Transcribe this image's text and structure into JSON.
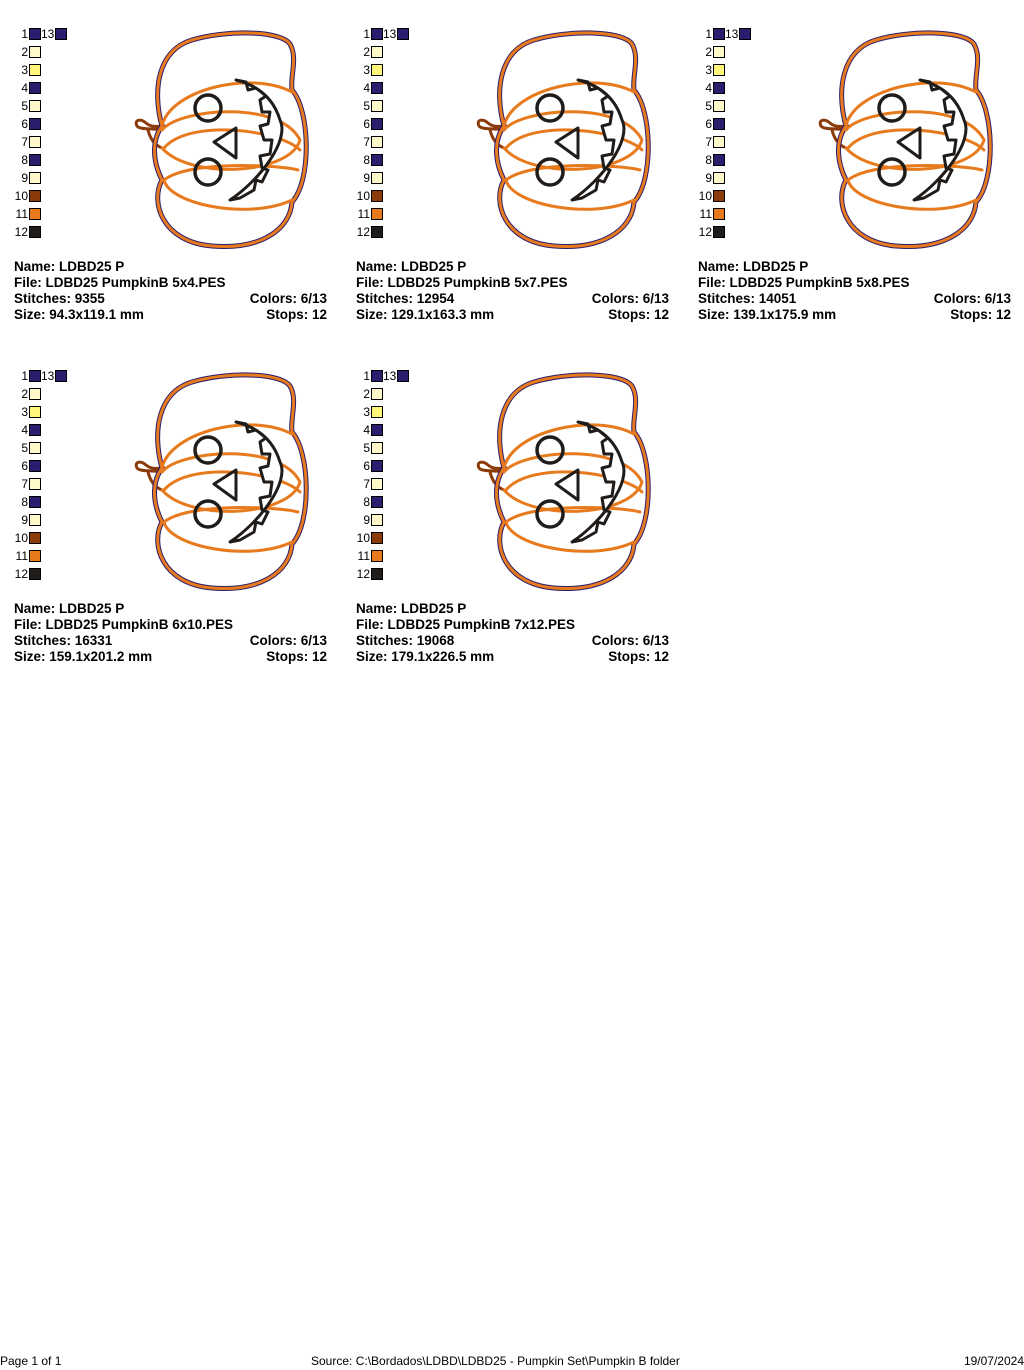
{
  "thread_colors": [
    {
      "num": "1",
      "color": "#2a1d6e"
    },
    {
      "num": "2",
      "color": "#fff8c8"
    },
    {
      "num": "3",
      "color": "#fff67a"
    },
    {
      "num": "4",
      "color": "#2a1d6e"
    },
    {
      "num": "5",
      "color": "#fff8c8"
    },
    {
      "num": "6",
      "color": "#2a1d6e"
    },
    {
      "num": "7",
      "color": "#fff8c8"
    },
    {
      "num": "8",
      "color": "#2a1d6e"
    },
    {
      "num": "9",
      "color": "#fff8c8"
    },
    {
      "num": "10",
      "color": "#8b3a0a"
    },
    {
      "num": "11",
      "color": "#e87a1e"
    },
    {
      "num": "12",
      "color": "#201c1a"
    }
  ],
  "extra_color": {
    "num": "13",
    "color": "#2a1d6e"
  },
  "designs": [
    {
      "name": "Name: LDBD25 P",
      "file": "File: LDBD25 PumpkinB 5x4.PES",
      "stitches": "Stitches: 9355",
      "colors": "Colors: 6/13",
      "size": "Size: 94.3x119.1 mm",
      "stops": "Stops: 12"
    },
    {
      "name": "Name: LDBD25 P",
      "file": "File: LDBD25 PumpkinB 5x7.PES",
      "stitches": "Stitches: 12954",
      "colors": "Colors: 6/13",
      "size": "Size: 129.1x163.3 mm",
      "stops": "Stops: 12"
    },
    {
      "name": "Name: LDBD25 P",
      "file": "File: LDBD25 PumpkinB 5x8.PES",
      "stitches": "Stitches: 14051",
      "colors": "Colors: 6/13",
      "size": "Size: 139.1x175.9 mm",
      "stops": "Stops: 12"
    },
    {
      "name": "Name: LDBD25 P",
      "file": "File: LDBD25 PumpkinB 6x10.PES",
      "stitches": "Stitches: 16331",
      "colors": "Colors: 6/13",
      "size": "Size: 159.1x201.2 mm",
      "stops": "Stops: 12"
    },
    {
      "name": "Name: LDBD25 P",
      "file": "File: LDBD25 PumpkinB 7x12.PES",
      "stitches": "Stitches: 19068",
      "colors": "Colors: 6/13",
      "size": "Size: 179.1x226.5 mm",
      "stops": "Stops: 12"
    }
  ],
  "footer": {
    "page": "Page 1 of 1",
    "source": "Source: C:\\Bordados\\LDBD\\LDBD25 - Pumpkin Set\\Pumpkin B folder",
    "date": "19/07/2024"
  }
}
